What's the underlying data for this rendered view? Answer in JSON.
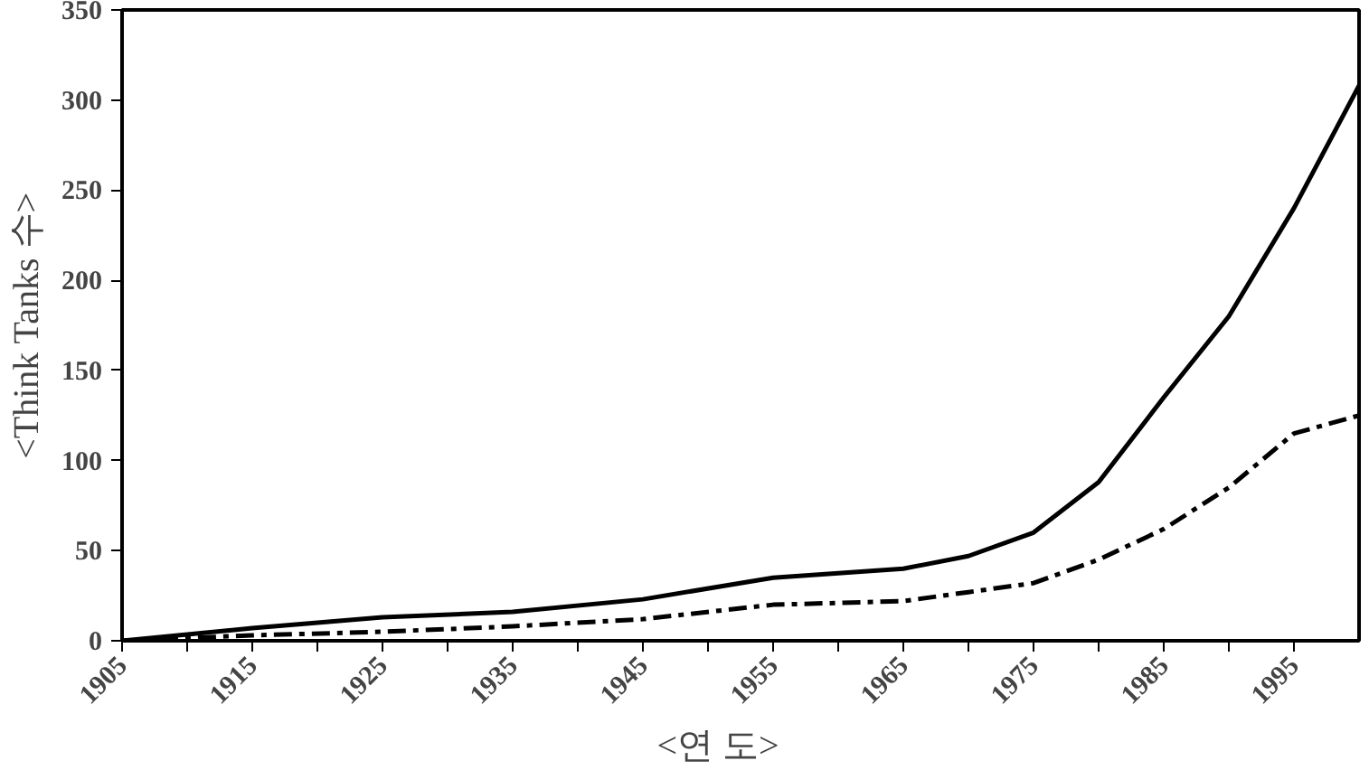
{
  "chart_data": {
    "type": "line",
    "xlabel": "<연      도>",
    "ylabel": "<Think Tanks 수>",
    "x": [
      1905,
      1915,
      1925,
      1935,
      1945,
      1955,
      1965,
      1970,
      1975,
      1980,
      1985,
      1990,
      1995,
      2000
    ],
    "series": [
      {
        "color": "#000000",
        "line_style": "solid",
        "values": [
          0,
          7,
          13,
          16,
          23,
          35,
          40,
          47,
          60,
          88,
          135,
          180,
          240,
          308
        ]
      },
      {
        "color": "#000000",
        "line_style": "dashed",
        "values": [
          0,
          3,
          5,
          8,
          12,
          20,
          22,
          27,
          32,
          45,
          62,
          85,
          115,
          125
        ]
      }
    ],
    "xlim": [
      1905,
      2000
    ],
    "ylim": [
      0,
      350
    ],
    "xticks": [
      1905,
      {
        "value": 1910,
        "label": null
      },
      1915,
      {
        "value": 1920,
        "label": null
      },
      1925,
      {
        "value": 1930,
        "label": null
      },
      1935,
      {
        "value": 1940,
        "label": null
      },
      1945,
      {
        "value": 1950,
        "label": null
      },
      1955,
      {
        "value": 1960,
        "label": null
      },
      1965,
      {
        "value": 1970,
        "label": null
      },
      1975,
      {
        "value": 1980,
        "label": null
      },
      1985,
      {
        "value": 1990,
        "label": null
      },
      1995
    ],
    "yticks": [
      0,
      50,
      100,
      150,
      200,
      250,
      300,
      350
    ],
    "grid": false,
    "marker": "none"
  }
}
